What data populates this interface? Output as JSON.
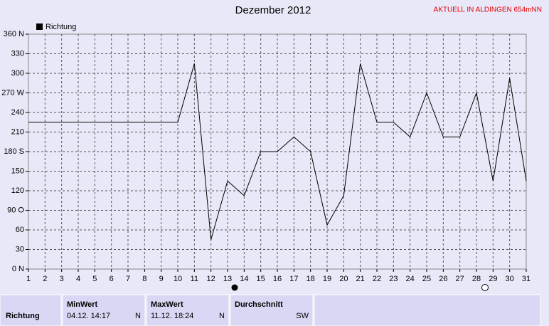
{
  "chart_data": {
    "type": "line",
    "title": "Dezember 2012",
    "annotation": "AKTUELL IN ALDINGEN 654mNN",
    "x": [
      1,
      2,
      3,
      4,
      5,
      6,
      7,
      8,
      9,
      10,
      11,
      12,
      13,
      14,
      15,
      16,
      17,
      18,
      19,
      20,
      21,
      22,
      23,
      24,
      25,
      26,
      27,
      28,
      29,
      30,
      31
    ],
    "xlim": [
      1,
      31
    ],
    "xticks": [
      1,
      2,
      3,
      4,
      5,
      6,
      7,
      8,
      9,
      10,
      11,
      12,
      13,
      14,
      15,
      16,
      17,
      18,
      19,
      20,
      21,
      22,
      23,
      24,
      25,
      26,
      27,
      28,
      29,
      30,
      31
    ],
    "ylim": [
      0,
      360
    ],
    "yticks": [
      {
        "value": 0,
        "label": "0 N"
      },
      30,
      60,
      {
        "value": 90,
        "label": "90 O"
      },
      120,
      150,
      {
        "value": 180,
        "label": "180 S"
      },
      210,
      240,
      {
        "value": 270,
        "label": "270 W"
      },
      300,
      330,
      {
        "value": 360,
        "label": "360 N"
      }
    ],
    "grid": true,
    "series": [
      {
        "name": "Richtung",
        "color": "#000000",
        "values": [
          225,
          225,
          225,
          225,
          225,
          225,
          225,
          225,
          225,
          225,
          315,
          45,
          135,
          112.5,
          180,
          180,
          202.5,
          180,
          67.5,
          112.5,
          315,
          225,
          225,
          202.5,
          270,
          202.5,
          202.5,
          270,
          135,
          292.5,
          135
        ]
      }
    ]
  },
  "summary": {
    "label": "Richtung",
    "columns": [
      {
        "header": "MinWert",
        "date": "04.12. 14:17",
        "value": "N"
      },
      {
        "header": "MaxWert",
        "date": "11.12. 18:24",
        "value": "N"
      },
      {
        "header": "Durchschnitt",
        "value": "SW"
      }
    ]
  }
}
